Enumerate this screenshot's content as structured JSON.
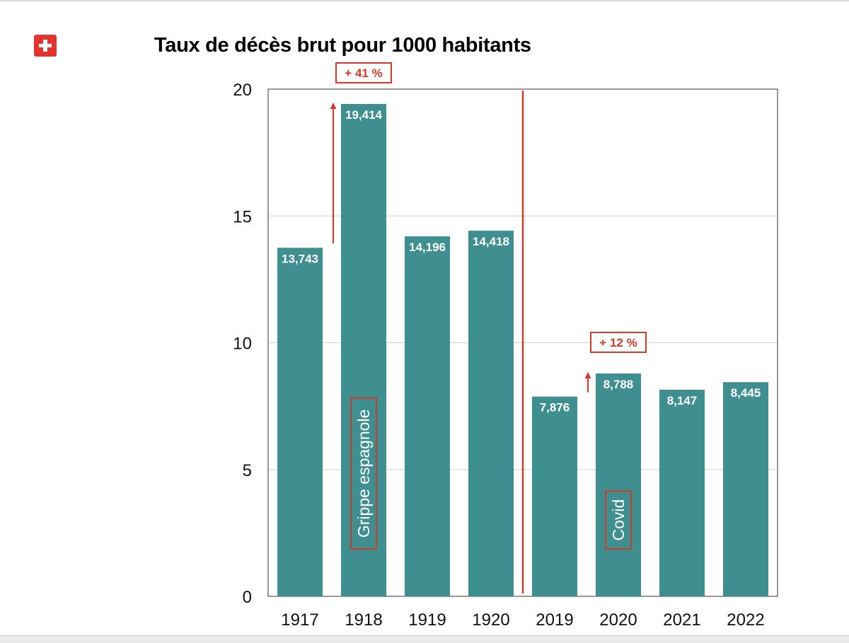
{
  "flag": {
    "icon": "swiss-flag-icon",
    "color": "#e3342f"
  },
  "chart_data": {
    "type": "bar",
    "title": "Taux de décès brut pour 1000 habitants",
    "categories": [
      "1917",
      "1918",
      "1919",
      "1920",
      "2019",
      "2020",
      "2021",
      "2022"
    ],
    "values": [
      13.743,
      19.414,
      14.196,
      14.418,
      7.876,
      8.788,
      8.147,
      8.445
    ],
    "data_labels": [
      "13,743",
      "19,414",
      "14,196",
      "14,418",
      "7,876",
      "8,788",
      "8,147",
      "8,445"
    ],
    "ylim": [
      0,
      20
    ],
    "yticks": [
      0,
      5,
      10,
      15,
      20
    ],
    "xlabel": "",
    "ylabel": "",
    "grid": true,
    "bar_color": "#3f8f91",
    "annotation_color": "#d23a2a",
    "annotations": [
      {
        "text": "+ 41 %",
        "category": "1918"
      },
      {
        "text": "+ 12 %",
        "category": "2020"
      }
    ],
    "bar_labels": [
      {
        "text": "Grippe espagnole",
        "category": "1918"
      },
      {
        "text": "Covid",
        "category": "2020"
      }
    ]
  }
}
